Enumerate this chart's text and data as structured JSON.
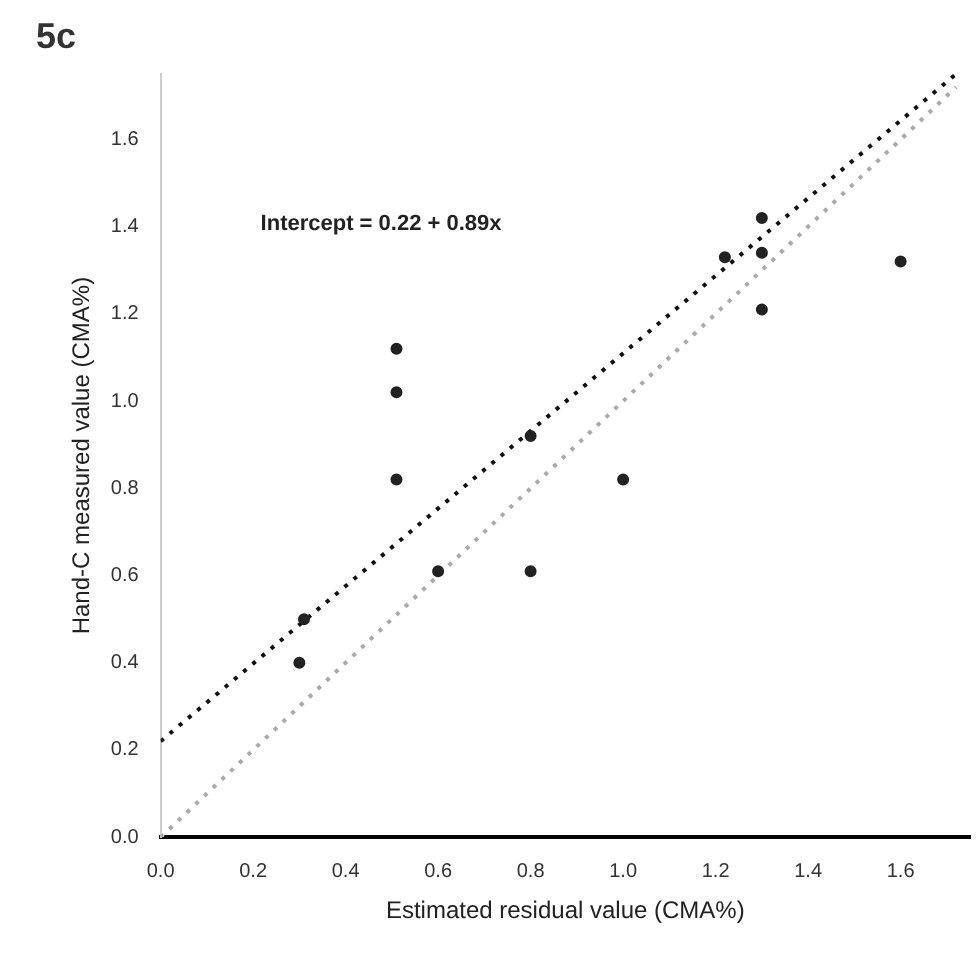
{
  "chart_data": {
    "type": "scatter",
    "title": "5c",
    "xlabel": "Estimated residual value (CMA%)",
    "ylabel": "Hand-C measured value (CMA%)",
    "xlim": [
      0,
      1.75
    ],
    "ylim": [
      0,
      1.75
    ],
    "xticks": [
      {
        "value": 0,
        "label": "0.0"
      },
      0.2,
      0.4,
      0.6,
      0.8,
      {
        "value": 1,
        "label": "1.0"
      },
      1.2,
      1.4,
      1.6
    ],
    "yticks": [
      {
        "value": 0,
        "label": "0.0"
      },
      0.2,
      0.4,
      0.6,
      0.8,
      {
        "value": 1,
        "label": "1.0"
      },
      1.2,
      1.4,
      1.6
    ],
    "grid": false,
    "legend": false,
    "marker": "circle",
    "annotations": [
      "Intercept = 0.22 + 0.89x"
    ],
    "series": [
      {
        "type": "scatter",
        "color": "#222222",
        "x": [
          0.51,
          1.0,
          0.6,
          0.8,
          0.3,
          0.31,
          0.51,
          0.51,
          1.3,
          1.3,
          1.6,
          1.22,
          1.3,
          0.8
        ],
        "values": [
          0.82,
          0.82,
          0.61,
          0.61,
          0.4,
          0.5,
          1.02,
          1.12,
          1.42,
          1.21,
          1.32,
          1.33,
          1.34,
          0.92
        ]
      },
      {
        "type": "line",
        "color": "#111111",
        "line_style": "dotted",
        "marker": "none",
        "x": [
          0,
          1.72
        ],
        "values": [
          0.22,
          1.75
        ]
      },
      {
        "type": "line",
        "color": "#aaaaaa",
        "line_style": "dotted",
        "marker": "none",
        "x": [
          0,
          1.72
        ],
        "values": [
          0,
          1.72
        ]
      }
    ]
  }
}
